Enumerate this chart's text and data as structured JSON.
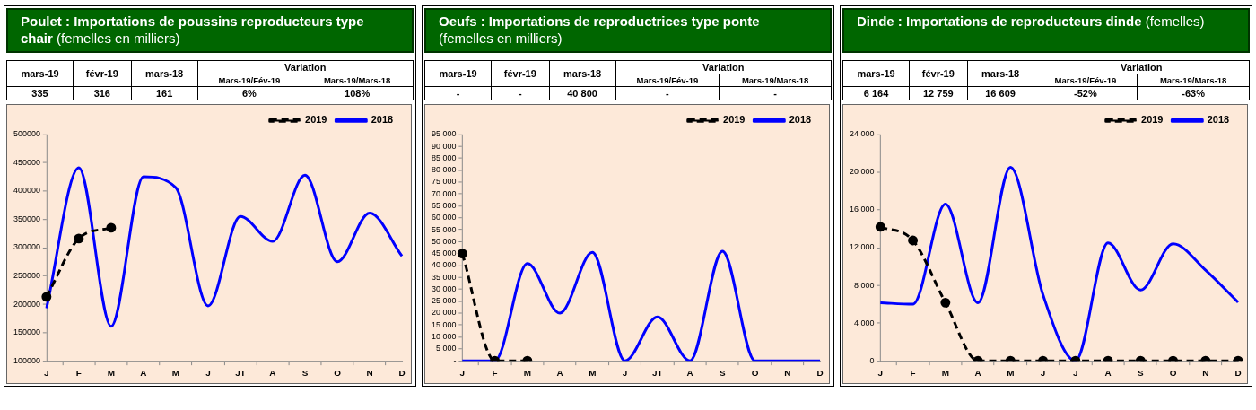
{
  "chart_data": [
    {
      "type": "line",
      "title": "Poulet : Importations de poussins reproducteurs type chair",
      "subtitle": "(femelles en milliers)",
      "annotations": [
        "mars-19",
        "févr-19",
        "mars-18",
        "Variation",
        "Mars-19/Fév-19",
        "Mars-19/Mars-18",
        "335",
        "316",
        "161",
        "6%",
        "108%"
      ],
      "categories": [
        "J",
        "F",
        "M",
        "A",
        "M",
        "J",
        "JT",
        "A",
        "S",
        "O",
        "N",
        "D"
      ],
      "series": [
        {
          "name": "2019",
          "color": "#000000",
          "line_style": "dashed",
          "marker": "circle",
          "values": [
            213000,
            316000,
            335000,
            null,
            null,
            null,
            null,
            null,
            null,
            null,
            null,
            null
          ]
        },
        {
          "name": "2018",
          "color": "#0000ff",
          "line_style": "solid",
          "marker": "none",
          "values": [
            193000,
            441000,
            161000,
            425000,
            406000,
            197000,
            355000,
            311000,
            428000,
            275000,
            361000,
            285000
          ]
        }
      ],
      "ylim": [
        100000,
        500000
      ],
      "yticks": [
        100000,
        150000,
        200000,
        250000,
        300000,
        350000,
        400000,
        450000,
        500000
      ],
      "legend": "top right"
    },
    {
      "type": "line",
      "title": "Oeufs : Importations de reproductrices type ponte",
      "subtitle": "(femelles en milliers)",
      "annotations": [
        "mars-19",
        "févr-19",
        "mars-18",
        "Variation",
        "Mars-19/Fév-19",
        "Mars-19/Mars-18",
        "-",
        "-",
        "40 800",
        "-",
        "-"
      ],
      "categories": [
        "J",
        "F",
        "M",
        "A",
        "M",
        "J",
        "JT",
        "A",
        "S",
        "O",
        "N",
        "D"
      ],
      "series": [
        {
          "name": "2019",
          "color": "#000000",
          "line_style": "dashed",
          "marker": "circle",
          "values": [
            45000,
            0,
            0,
            null,
            null,
            null,
            null,
            null,
            null,
            null,
            null,
            null
          ]
        },
        {
          "name": "2018",
          "color": "#0000ff",
          "line_style": "solid",
          "marker": "none",
          "values": [
            0,
            0,
            40800,
            20000,
            45500,
            0,
            18400,
            0,
            46000,
            0,
            0,
            0
          ]
        }
      ],
      "ylim": [
        0,
        95000
      ],
      "yticks": [
        {
          "value": 0,
          "label": "-"
        },
        {
          "value": 5000,
          "label": "5 000"
        },
        {
          "value": 10000,
          "label": "10 000"
        },
        {
          "value": 15000,
          "label": "15 000"
        },
        {
          "value": 20000,
          "label": "20 000"
        },
        {
          "value": 25000,
          "label": "25 000"
        },
        {
          "value": 30000,
          "label": "30 000"
        },
        {
          "value": 35000,
          "label": "35 000"
        },
        {
          "value": 40000,
          "label": "40 000"
        },
        {
          "value": 45000,
          "label": "45 000"
        },
        {
          "value": 50000,
          "label": "50 000"
        },
        {
          "value": 55000,
          "label": "55 000"
        },
        {
          "value": 60000,
          "label": "60 000"
        },
        {
          "value": 65000,
          "label": "65 000"
        },
        {
          "value": 70000,
          "label": "70 000"
        },
        {
          "value": 75000,
          "label": "75 000"
        },
        {
          "value": 80000,
          "label": "80 000"
        },
        {
          "value": 85000,
          "label": "85 000"
        },
        {
          "value": 90000,
          "label": "90 000"
        },
        {
          "value": 95000,
          "label": "95 000"
        }
      ],
      "legend": "top right"
    },
    {
      "type": "line",
      "title": "Dinde : Importations de reproducteurs dinde",
      "subtitle": "(femelles)",
      "annotations": [
        "mars-19",
        "févr-19",
        "mars-18",
        "Variation",
        "Mars-19/Fév-19",
        "Mars-19/Mars-18",
        "6 164",
        "12 759",
        "16 609",
        "-52%",
        "-63%"
      ],
      "categories": [
        "J",
        "F",
        "M",
        "A",
        "M",
        "J",
        "J",
        "A",
        "S",
        "O",
        "N",
        "D"
      ],
      "series": [
        {
          "name": "2019",
          "color": "#000000",
          "line_style": "dashed",
          "marker": "circle",
          "values": [
            14200,
            12759,
            6164,
            0,
            0,
            0,
            0,
            0,
            0,
            0,
            0,
            0
          ]
        },
        {
          "name": "2018",
          "color": "#0000ff",
          "line_style": "solid",
          "marker": "none",
          "values": [
            6150,
            6000,
            16609,
            6150,
            20500,
            7000,
            0,
            12500,
            7500,
            12400,
            9600,
            6200
          ]
        }
      ],
      "ylim": [
        0,
        24000
      ],
      "yticks": [
        0,
        {
          "value": 4000,
          "label": "4 000"
        },
        {
          "value": 8000,
          "label": "8 000"
        },
        {
          "value": 12000,
          "label": "12 000"
        },
        {
          "value": 16000,
          "label": "16 000"
        },
        {
          "value": 20000,
          "label": "20 000"
        },
        {
          "value": 24000,
          "label": "24 000"
        }
      ],
      "legend": "top right"
    }
  ]
}
